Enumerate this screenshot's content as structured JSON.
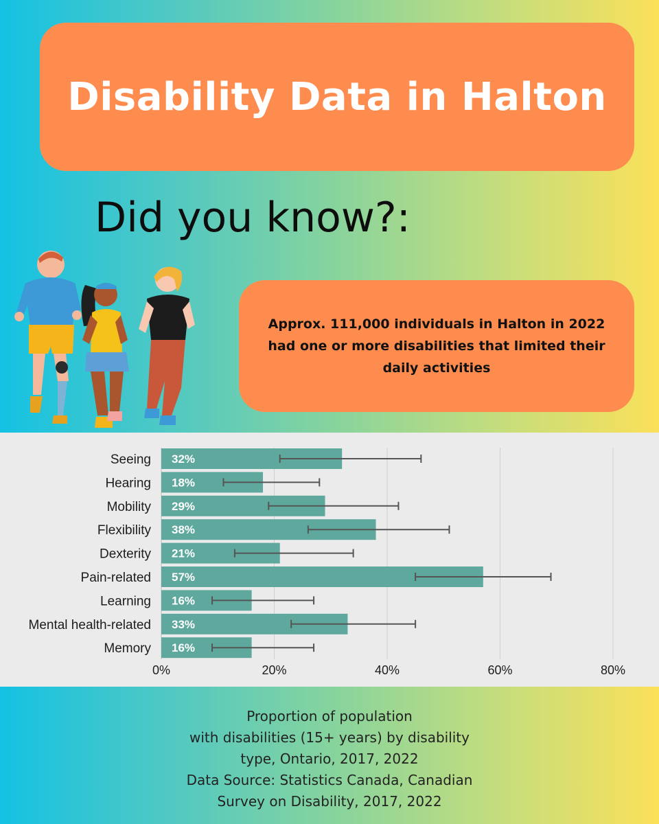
{
  "header": {
    "title": "Disability Data in Halton"
  },
  "subheading": "Did you know?:",
  "fact": "Approx. 111,000 individuals in Halton in 2022 had one or more disabilities that limited their daily activities",
  "caption_lines": [
    "Proportion of population",
    "with disabilities (15+ years) by disability",
    "type, Ontario, 2017, 2022",
    "Data Source: Statistics Canada, Canadian",
    "Survey on Disability, 2017, 2022"
  ],
  "chart_data": {
    "type": "bar",
    "orientation": "horizontal",
    "categories": [
      "Seeing",
      "Hearing",
      "Mobility",
      "Flexibility",
      "Dexterity",
      "Pain-related",
      "Learning",
      "Mental health-related",
      "Memory"
    ],
    "values": [
      32,
      18,
      29,
      38,
      21,
      57,
      16,
      33,
      16
    ],
    "value_labels": [
      "32%",
      "18%",
      "29%",
      "38%",
      "21%",
      "57%",
      "16%",
      "33%",
      "16%"
    ],
    "error_low": [
      21,
      11,
      19,
      26,
      13,
      45,
      9,
      23,
      9
    ],
    "error_high": [
      46,
      28,
      42,
      51,
      34,
      69,
      27,
      45,
      27
    ],
    "xlim": [
      0,
      80
    ],
    "x_ticks": [
      0,
      20,
      40,
      60,
      80
    ],
    "x_tick_labels": [
      "0%",
      "20%",
      "40%",
      "60%",
      "80%"
    ],
    "grid": true,
    "colors": {
      "bar": "#5ea89d",
      "error_bar": "#555555",
      "grid": "#cfcfcf",
      "panel": "#ebebeb"
    }
  },
  "colors": {
    "accent_orange": "#fd8c4e",
    "gradient_start": "#14c2e3",
    "gradient_end": "#fbe05a"
  }
}
